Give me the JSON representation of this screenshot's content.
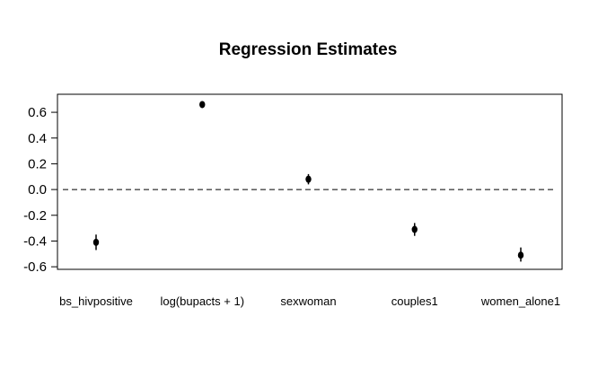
{
  "chart_data": {
    "type": "scatter",
    "title": "Regression Estimates",
    "xlabel": "",
    "ylabel": "",
    "ylim": [
      -0.62,
      0.74
    ],
    "yticks": [
      -0.6,
      -0.4,
      -0.2,
      0.0,
      0.2,
      0.4,
      0.6
    ],
    "ytick_labels": [
      "-0.6",
      "-0.4",
      "-0.2",
      "0.0",
      "0.2",
      "0.4",
      "0.6"
    ],
    "reference_line": {
      "y": 0.0,
      "style": "dashed"
    },
    "categories": [
      "bs_hivpositive",
      "log(bupacts + 1)",
      "sexwoman",
      "couples1",
      "women_alone1"
    ],
    "estimates": [
      -0.41,
      0.66,
      0.08,
      -0.31,
      -0.51
    ],
    "lower": [
      -0.47,
      0.645,
      0.04,
      -0.36,
      -0.56
    ],
    "upper": [
      -0.35,
      0.675,
      0.12,
      -0.26,
      -0.45
    ],
    "grid": false,
    "colors": {
      "points": "#000000",
      "axis": "#000000"
    }
  }
}
